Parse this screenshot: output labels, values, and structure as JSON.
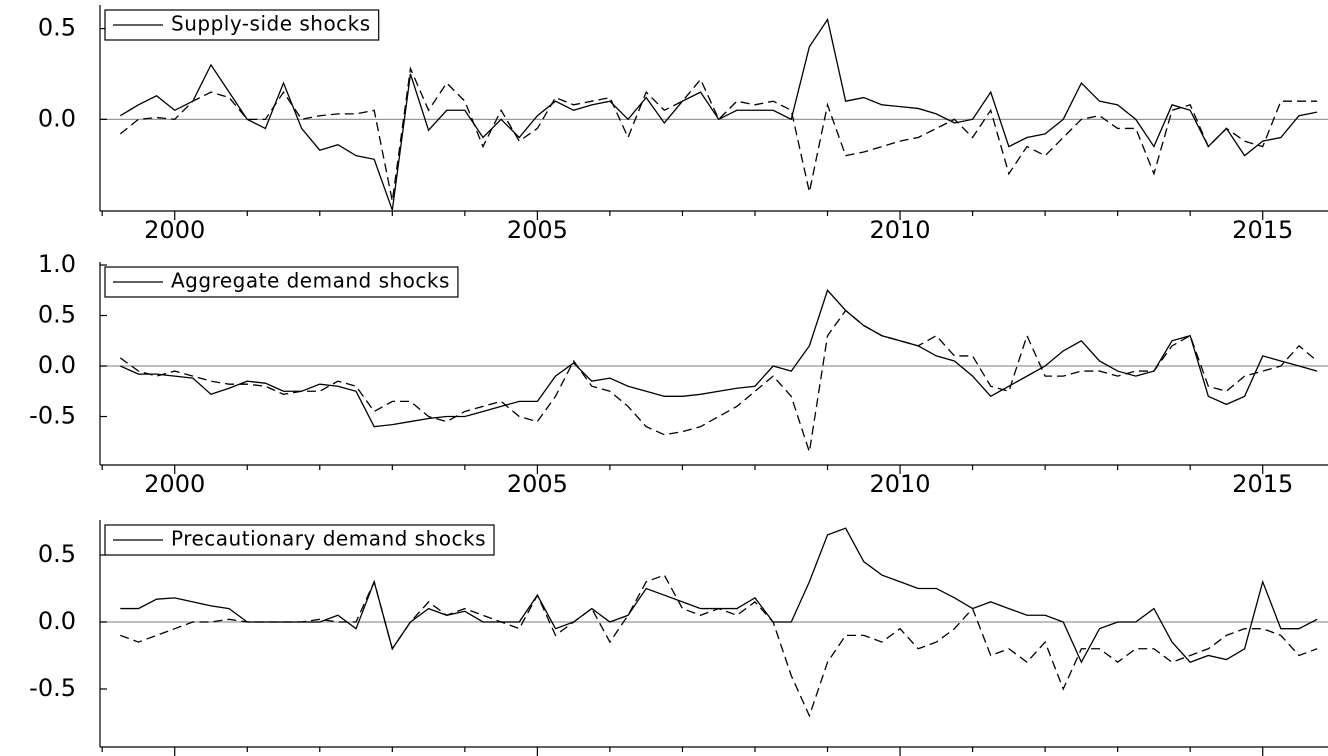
{
  "chart_data": [
    {
      "type": "line",
      "legend": "upper left",
      "zero_line": true,
      "x": [
        1999.25,
        1999.5,
        1999.75,
        2000,
        2000.25,
        2000.5,
        2000.75,
        2001,
        2001.25,
        2001.5,
        2001.75,
        2002,
        2002.25,
        2002.5,
        2002.75,
        2003,
        2003.25,
        2003.5,
        2003.75,
        2004,
        2004.25,
        2004.5,
        2004.75,
        2005,
        2005.25,
        2005.5,
        2005.75,
        2006,
        2006.25,
        2006.5,
        2006.75,
        2007,
        2007.25,
        2007.5,
        2007.75,
        2008,
        2008.25,
        2008.5,
        2008.75,
        2009,
        2009.25,
        2009.5,
        2009.75,
        2010,
        2010.25,
        2010.5,
        2010.75,
        2011,
        2011.25,
        2011.5,
        2011.75,
        2012,
        2012.25,
        2012.5,
        2012.75,
        2013,
        2013.25,
        2013.5,
        2013.75,
        2014,
        2014.25,
        2014.5,
        2014.75,
        2015,
        2015.25,
        2015.5,
        2015.75
      ],
      "xlim": [
        1998.97,
        2015.9
      ],
      "xticks": [
        2000,
        2005,
        2010,
        2015
      ],
      "xminorticks": [
        1999,
        2001,
        2002,
        2003,
        2004,
        2006,
        2007,
        2008,
        2009,
        2011,
        2012,
        2013,
        2014
      ],
      "ylim": [
        -0.505,
        0.63
      ],
      "yticks": [
        0.5,
        {
          "value": 0,
          "label": "0.0"
        }
      ],
      "series": [
        {
          "name": "Supply-side shocks",
          "color": "#000000",
          "style": "solid",
          "values": [
            0.02,
            0.08,
            0.13,
            0.05,
            0.1,
            0.3,
            0.15,
            0.0,
            -0.05,
            0.2,
            -0.05,
            -0.17,
            -0.14,
            -0.2,
            -0.22,
            -0.5,
            0.25,
            -0.06,
            0.05,
            0.05,
            -0.1,
            0.0,
            -0.1,
            0.02,
            0.1,
            0.05,
            0.08,
            0.1,
            0.0,
            0.12,
            -0.02,
            0.1,
            0.15,
            0.0,
            0.05,
            0.05,
            0.05,
            0.0,
            0.4,
            0.55,
            0.1,
            0.12,
            0.08,
            0.07,
            0.06,
            0.03,
            -0.02,
            0.0,
            0.15,
            -0.15,
            -0.1,
            -0.08,
            0.0,
            0.2,
            0.1,
            0.08,
            0.0,
            -0.15,
            0.08,
            0.05,
            -0.15,
            -0.05,
            -0.2,
            -0.12,
            -0.1,
            0.02,
            0.04
          ]
        },
        {
          "color": "#000000",
          "style": "dashed",
          "values": [
            -0.08,
            0.0,
            0.01,
            0.0,
            0.1,
            0.15,
            0.12,
            0.0,
            0.0,
            0.15,
            0.0,
            0.02,
            0.03,
            0.03,
            0.05,
            -0.45,
            0.28,
            0.05,
            0.2,
            0.1,
            -0.15,
            0.05,
            -0.12,
            -0.05,
            0.12,
            0.08,
            0.1,
            0.12,
            -0.1,
            0.15,
            0.05,
            0.1,
            0.22,
            0.0,
            0.1,
            0.08,
            0.1,
            0.05,
            -0.4,
            0.08,
            -0.2,
            -0.18,
            -0.15,
            -0.12,
            -0.1,
            -0.05,
            0.0,
            -0.1,
            0.05,
            -0.3,
            -0.15,
            -0.2,
            -0.1,
            0.0,
            0.02,
            -0.05,
            -0.05,
            -0.3,
            0.05,
            0.08,
            -0.15,
            -0.05,
            -0.12,
            -0.15,
            0.1,
            0.1,
            0.1
          ]
        }
      ]
    },
    {
      "type": "line",
      "legend": "upper left",
      "zero_line": true,
      "x": [
        1999.25,
        1999.5,
        1999.75,
        2000,
        2000.25,
        2000.5,
        2000.75,
        2001,
        2001.25,
        2001.5,
        2001.75,
        2002,
        2002.25,
        2002.5,
        2002.75,
        2003,
        2003.25,
        2003.5,
        2003.75,
        2004,
        2004.25,
        2004.5,
        2004.75,
        2005,
        2005.25,
        2005.5,
        2005.75,
        2006,
        2006.25,
        2006.5,
        2006.75,
        2007,
        2007.25,
        2007.5,
        2007.75,
        2008,
        2008.25,
        2008.5,
        2008.75,
        2009,
        2009.25,
        2009.5,
        2009.75,
        2010,
        2010.25,
        2010.5,
        2010.75,
        2011,
        2011.25,
        2011.5,
        2011.75,
        2012,
        2012.25,
        2012.5,
        2012.75,
        2013,
        2013.25,
        2013.5,
        2013.75,
        2014,
        2014.25,
        2014.5,
        2014.75,
        2015,
        2015.25,
        2015.5,
        2015.75
      ],
      "xlim": [
        1998.97,
        2015.9
      ],
      "xticks": [
        2000,
        2005,
        2010,
        2015
      ],
      "xminorticks": [
        1999,
        2001,
        2002,
        2003,
        2004,
        2006,
        2007,
        2008,
        2009,
        2011,
        2012,
        2013,
        2014
      ],
      "ylim": [
        -0.98,
        1.03
      ],
      "yticks": [
        {
          "value": 1,
          "label": "1.0"
        },
        0.5,
        {
          "value": 0,
          "label": "0.0"
        },
        -0.5
      ],
      "series": [
        {
          "name": "Aggregate demand shocks",
          "color": "#000000",
          "style": "solid",
          "values": [
            0.0,
            -0.08,
            -0.08,
            -0.1,
            -0.12,
            -0.28,
            -0.22,
            -0.15,
            -0.17,
            -0.25,
            -0.25,
            -0.18,
            -0.2,
            -0.25,
            -0.6,
            -0.58,
            -0.55,
            -0.52,
            -0.5,
            -0.5,
            -0.45,
            -0.4,
            -0.35,
            -0.35,
            -0.1,
            0.03,
            -0.15,
            -0.12,
            -0.2,
            -0.25,
            -0.3,
            -0.3,
            -0.28,
            -0.25,
            -0.22,
            -0.2,
            0.0,
            -0.05,
            0.2,
            0.75,
            0.55,
            0.4,
            0.3,
            0.25,
            0.2,
            0.1,
            0.05,
            -0.1,
            -0.3,
            -0.2,
            -0.1,
            0.0,
            0.15,
            0.25,
            0.05,
            -0.05,
            -0.1,
            -0.05,
            0.25,
            0.3,
            -0.3,
            -0.38,
            -0.3,
            0.1,
            0.05,
            0.0,
            -0.05
          ]
        },
        {
          "color": "#000000",
          "style": "dashed",
          "values": [
            0.08,
            -0.05,
            -0.1,
            -0.05,
            -0.1,
            -0.15,
            -0.18,
            -0.18,
            -0.2,
            -0.28,
            -0.25,
            -0.25,
            -0.15,
            -0.2,
            -0.45,
            -0.35,
            -0.35,
            -0.5,
            -0.55,
            -0.45,
            -0.4,
            -0.35,
            -0.5,
            -0.55,
            -0.3,
            0.05,
            -0.2,
            -0.25,
            -0.4,
            -0.6,
            -0.68,
            -0.65,
            -0.6,
            -0.5,
            -0.4,
            -0.25,
            -0.1,
            -0.3,
            -0.85,
            0.3,
            0.55,
            0.4,
            0.3,
            0.25,
            0.2,
            0.3,
            0.1,
            0.1,
            -0.2,
            -0.25,
            0.3,
            -0.1,
            -0.1,
            -0.05,
            -0.05,
            -0.1,
            -0.05,
            -0.05,
            0.2,
            0.3,
            -0.2,
            -0.25,
            -0.1,
            -0.05,
            0.0,
            0.2,
            0.05
          ]
        }
      ]
    },
    {
      "type": "line",
      "legend": "upper left",
      "zero_line": true,
      "x": [
        1999.25,
        1999.5,
        1999.75,
        2000,
        2000.25,
        2000.5,
        2000.75,
        2001,
        2001.25,
        2001.5,
        2001.75,
        2002,
        2002.25,
        2002.5,
        2002.75,
        2003,
        2003.25,
        2003.5,
        2003.75,
        2004,
        2004.25,
        2004.5,
        2004.75,
        2005,
        2005.25,
        2005.5,
        2005.75,
        2006,
        2006.25,
        2006.5,
        2006.75,
        2007,
        2007.25,
        2007.5,
        2007.75,
        2008,
        2008.25,
        2008.5,
        2008.75,
        2009,
        2009.25,
        2009.5,
        2009.75,
        2010,
        2010.25,
        2010.5,
        2010.75,
        2011,
        2011.25,
        2011.5,
        2011.75,
        2012,
        2012.25,
        2012.5,
        2012.75,
        2013,
        2013.25,
        2013.5,
        2013.75,
        2014,
        2014.25,
        2014.5,
        2014.75,
        2015,
        2015.25,
        2015.5,
        2015.75
      ],
      "xlim": [
        1998.97,
        2015.9
      ],
      "xticks": [
        2000,
        2005,
        2010,
        2015
      ],
      "xminorticks": [
        1999,
        2001,
        2002,
        2003,
        2004,
        2006,
        2007,
        2008,
        2009,
        2011,
        2012,
        2013,
        2014
      ],
      "ylim": [
        -0.933,
        0.761
      ],
      "yticks": [
        0.5,
        {
          "value": 0,
          "label": "0.0"
        },
        -0.5
      ],
      "series": [
        {
          "name": "Precautionary demand shocks",
          "color": "#000000",
          "style": "solid",
          "values": [
            0.1,
            0.1,
            0.17,
            0.18,
            0.15,
            0.12,
            0.1,
            0.0,
            0.0,
            0.0,
            0.0,
            0.0,
            0.05,
            -0.05,
            0.3,
            -0.2,
            0.0,
            0.1,
            0.05,
            0.08,
            0.0,
            0.0,
            0.0,
            0.2,
            -0.05,
            0.0,
            0.1,
            0.0,
            0.05,
            0.25,
            0.2,
            0.15,
            0.1,
            0.1,
            0.1,
            0.18,
            0.0,
            0.0,
            0.3,
            0.65,
            0.7,
            0.45,
            0.35,
            0.3,
            0.25,
            0.25,
            0.18,
            0.1,
            0.15,
            0.1,
            0.05,
            0.05,
            0.0,
            -0.3,
            -0.05,
            0.0,
            0.0,
            0.1,
            -0.15,
            -0.3,
            -0.25,
            -0.28,
            -0.2,
            0.3,
            -0.05,
            -0.05,
            0.02
          ]
        },
        {
          "color": "#000000",
          "style": "dashed",
          "values": [
            -0.1,
            -0.15,
            -0.1,
            -0.05,
            0.0,
            0.0,
            0.02,
            0.0,
            0.0,
            0.0,
            0.0,
            0.02,
            0.0,
            0.0,
            0.3,
            -0.2,
            0.0,
            0.15,
            0.05,
            0.1,
            0.05,
            0.0,
            -0.05,
            0.2,
            -0.1,
            0.0,
            0.1,
            -0.15,
            0.05,
            0.3,
            0.35,
            0.1,
            0.05,
            0.1,
            0.05,
            0.15,
            0.0,
            -0.4,
            -0.7,
            -0.3,
            -0.1,
            -0.1,
            -0.15,
            -0.05,
            -0.2,
            -0.15,
            -0.05,
            0.1,
            -0.25,
            -0.2,
            -0.3,
            -0.15,
            -0.5,
            -0.2,
            -0.2,
            -0.3,
            -0.2,
            -0.2,
            -0.3,
            -0.25,
            -0.2,
            -0.1,
            -0.05,
            -0.05,
            -0.1,
            -0.25,
            -0.2
          ]
        }
      ]
    }
  ]
}
